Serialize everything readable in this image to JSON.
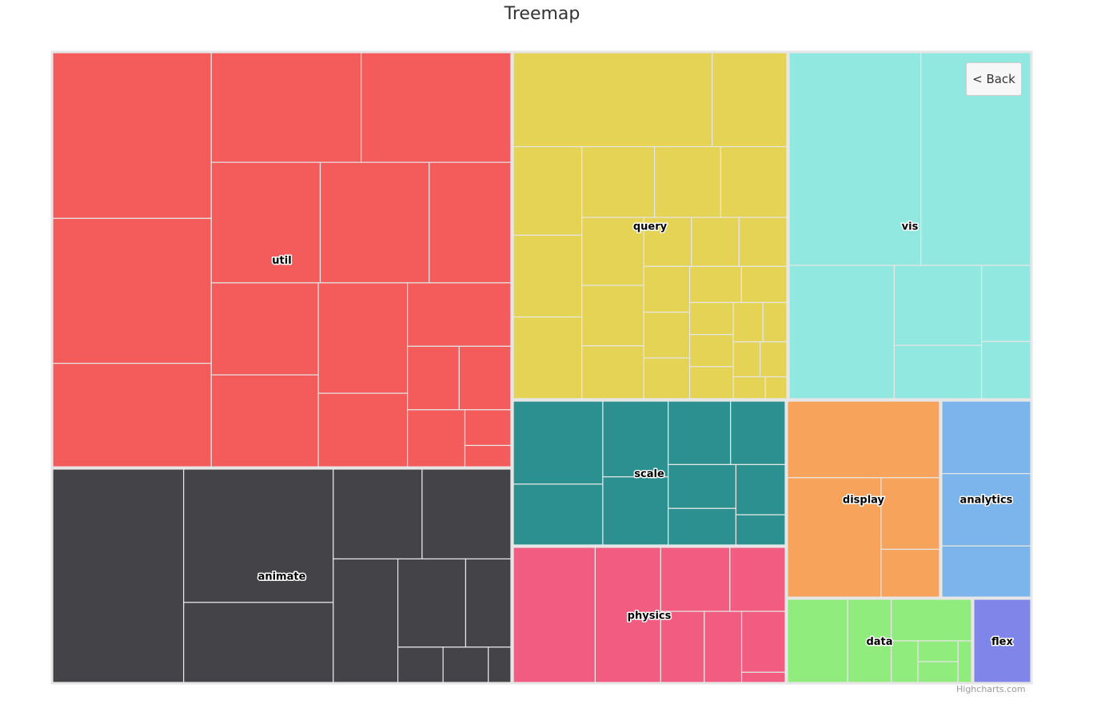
{
  "chart_data": {
    "type": "treemap",
    "title": "Treemap",
    "groups": [
      {
        "name": "util",
        "color": "#f45b5b",
        "values": [
          8,
          7,
          5,
          5,
          5,
          4,
          4,
          3,
          3,
          3,
          3,
          2,
          2,
          1,
          1,
          1,
          0.5,
          0.3
        ]
      },
      {
        "name": "animate",
        "color": "#434348",
        "values": [
          7,
          5,
          3,
          2,
          2,
          2,
          1.5,
          1,
          0.4,
          0.4,
          0.2
        ]
      },
      {
        "name": "query",
        "color": "#e4d354",
        "values": [
          4,
          1.5,
          1.3,
          1.2,
          1.2,
          1.1,
          1,
          1,
          0.9,
          0.8,
          0.7,
          0.5,
          0.5,
          0.5,
          0.45,
          0.45,
          0.4,
          0.4,
          0.35,
          0.3,
          0.3,
          0.3,
          0.25,
          0.2,
          0.2,
          0.2,
          0.15,
          0.1
        ]
      },
      {
        "name": "vis",
        "color": "#91e8e1",
        "values": [
          6,
          5,
          3,
          1.5,
          1,
          0.8,
          0.6
        ]
      },
      {
        "name": "scale",
        "color": "#2b908f",
        "values": [
          1.5,
          1.1,
          1,
          0.9,
          0.8,
          0.7,
          0.6,
          0.5,
          0.5,
          0.3
        ]
      },
      {
        "name": "physics",
        "color": "#f15c80",
        "values": [
          2.5,
          2,
          1,
          0.8,
          0.7,
          0.6,
          0.6,
          0.1
        ]
      },
      {
        "name": "display",
        "color": "#f7a35c",
        "values": [
          2.5,
          2.4,
          0.9,
          0.6
        ]
      },
      {
        "name": "analytics",
        "color": "#7cb5ec",
        "values": [
          1.7,
          1.7,
          1.2
        ]
      },
      {
        "name": "data",
        "color": "#90ed7d",
        "values": [
          1.8,
          1.3,
          1.2,
          0.4,
          0.3,
          0.3,
          0.2
        ]
      },
      {
        "name": "flex",
        "color": "#8085e9",
        "values": [
          1
        ]
      }
    ]
  },
  "ui": {
    "back_label": "< Back",
    "credits": "Highcharts.com"
  }
}
